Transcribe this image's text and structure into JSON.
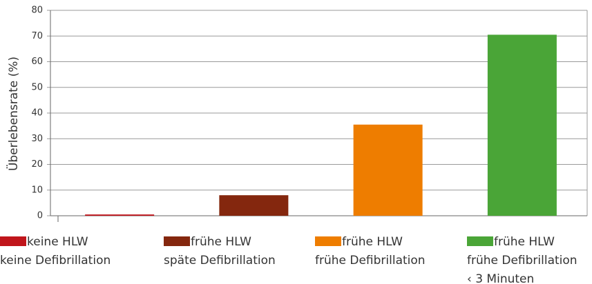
{
  "chart_data": {
    "type": "bar",
    "y_label": "Überlebensrate (%)",
    "categories": [
      [
        "keine HLW",
        "keine Defibrillation"
      ],
      [
        "frühe HLW",
        "späte Defibrillation"
      ],
      [
        "frühe HLW",
        "frühe Defibrillation"
      ],
      [
        "frühe HLW",
        "frühe Defibrillation",
        "‹ 3 Minuten"
      ]
    ],
    "values": [
      0.5,
      8,
      35.5,
      70.5
    ],
    "colors": [
      "#c0151b",
      "#84270e",
      "#ee7d00",
      "#4aa537"
    ],
    "ylim": [
      0,
      80
    ],
    "yticks": [
      0,
      10,
      20,
      30,
      40,
      50,
      60,
      70,
      80
    ],
    "grid": true
  }
}
